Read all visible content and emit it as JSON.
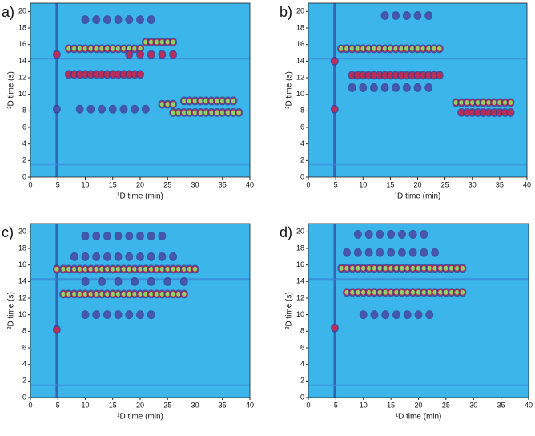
{
  "chart_data": [
    {
      "type": "contour",
      "panel_label": "a)",
      "xlabel": "¹D time (min)",
      "ylabel": "²D time (s)",
      "xlim": [
        0,
        40
      ],
      "ylim": [
        0,
        21
      ],
      "xticks": [
        0,
        5,
        10,
        15,
        20,
        25,
        30,
        35,
        40
      ],
      "yticks": [
        0,
        2,
        4,
        6,
        8,
        10,
        12,
        14,
        16,
        18,
        20
      ],
      "spot_rows": [
        {
          "y": 19,
          "color": "#4a55b0",
          "x": [
            10,
            12,
            14,
            16,
            18,
            20,
            22
          ]
        },
        {
          "y": 16.3,
          "color": "#8fd36a",
          "x": [
            21,
            22,
            23,
            24,
            25,
            26
          ]
        },
        {
          "y": 15.5,
          "color": "#8fd36a",
          "x": [
            7,
            8,
            9,
            10,
            11,
            12,
            13,
            14,
            15,
            16,
            17,
            18,
            19,
            20
          ]
        },
        {
          "y": 14.8,
          "color": "#b8305a",
          "x": [
            4.8,
            18,
            20,
            22,
            24,
            26
          ]
        },
        {
          "y": 12.4,
          "color": "#b8305a",
          "x": [
            7,
            8,
            9,
            10,
            11,
            12,
            13,
            14,
            15,
            16,
            17,
            18,
            19,
            20
          ]
        },
        {
          "y": 9.2,
          "color": "#8fd36a",
          "x": [
            28,
            29,
            30,
            31,
            32,
            33,
            34,
            35,
            36,
            37
          ]
        },
        {
          "y": 8.8,
          "color": "#8fd36a",
          "x": [
            24,
            25,
            26
          ]
        },
        {
          "y": 8.2,
          "color": "#4a55b0",
          "x": [
            4.8,
            9,
            11,
            13,
            15,
            17,
            19,
            21
          ]
        },
        {
          "y": 7.8,
          "color": "#8fd36a",
          "x": [
            26,
            27,
            28,
            29,
            30,
            31,
            32,
            33,
            34,
            35,
            36,
            37,
            38
          ]
        }
      ]
    },
    {
      "type": "contour",
      "panel_label": "b)",
      "xlabel": "¹D time (min)",
      "ylabel": "²D time (s)",
      "xlim": [
        0,
        40
      ],
      "ylim": [
        0,
        21
      ],
      "xticks": [
        0,
        5,
        10,
        15,
        20,
        25,
        30,
        35,
        40
      ],
      "yticks": [
        0,
        2,
        4,
        6,
        8,
        10,
        12,
        14,
        16,
        18,
        20
      ],
      "spot_rows": [
        {
          "y": 19.5,
          "color": "#4a55b0",
          "x": [
            14,
            16,
            18,
            20,
            22
          ]
        },
        {
          "y": 15.5,
          "color": "#8fd36a",
          "x": [
            6,
            7,
            8,
            9,
            10,
            11,
            12,
            13,
            14,
            15,
            16,
            17,
            18,
            19,
            20,
            21,
            22,
            23,
            24
          ]
        },
        {
          "y": 14,
          "color": "#b8305a",
          "x": [
            4.8
          ]
        },
        {
          "y": 12.3,
          "color": "#b8305a",
          "x": [
            8,
            9,
            10,
            11,
            12,
            13,
            14,
            15,
            16,
            17,
            18,
            19,
            20,
            21,
            22,
            23,
            24
          ]
        },
        {
          "y": 10.8,
          "color": "#4a55b0",
          "x": [
            8,
            10,
            12,
            14,
            16,
            18,
            20,
            22
          ]
        },
        {
          "y": 9,
          "color": "#8fd36a",
          "x": [
            27,
            28,
            29,
            30,
            31,
            32,
            33,
            34,
            35,
            36,
            37
          ]
        },
        {
          "y": 8.2,
          "color": "#b8305a",
          "x": [
            4.8
          ]
        },
        {
          "y": 7.8,
          "color": "#b8305a",
          "x": [
            28,
            29,
            30,
            31,
            32,
            33,
            34,
            35,
            36,
            37
          ]
        }
      ]
    },
    {
      "type": "contour",
      "panel_label": "c)",
      "xlabel": "¹D time (min)",
      "ylabel": "²D time (s)",
      "xlim": [
        0,
        40
      ],
      "ylim": [
        0,
        21
      ],
      "xticks": [
        0,
        5,
        10,
        15,
        20,
        25,
        30,
        35,
        40
      ],
      "yticks": [
        0,
        2,
        4,
        6,
        8,
        10,
        12,
        14,
        16,
        18,
        20
      ],
      "spot_rows": [
        {
          "y": 19.5,
          "color": "#4a55b0",
          "x": [
            10,
            12,
            14,
            16,
            18,
            20,
            22,
            24
          ]
        },
        {
          "y": 17,
          "color": "#4a55b0",
          "x": [
            8,
            10,
            12,
            14,
            16,
            18,
            20,
            22,
            24,
            26
          ]
        },
        {
          "y": 15.5,
          "color": "#8fd36a",
          "x": [
            4.8,
            6,
            7,
            8,
            9,
            10,
            11,
            12,
            13,
            14,
            15,
            16,
            17,
            18,
            19,
            20,
            21,
            22,
            23,
            24,
            25,
            26,
            27,
            28,
            29,
            30
          ]
        },
        {
          "y": 14,
          "color": "#4a55b0",
          "x": [
            10,
            13,
            16,
            19,
            22,
            25,
            28
          ]
        },
        {
          "y": 12.5,
          "color": "#8fd36a",
          "x": [
            6,
            7,
            8,
            9,
            10,
            11,
            12,
            13,
            14,
            15,
            16,
            17,
            18,
            19,
            20,
            21,
            22,
            23,
            24,
            25,
            26,
            27,
            28
          ]
        },
        {
          "y": 10,
          "color": "#4a55b0",
          "x": [
            10,
            12,
            14,
            16,
            18,
            20,
            22
          ]
        },
        {
          "y": 8.2,
          "color": "#b8305a",
          "x": [
            4.8
          ]
        }
      ]
    },
    {
      "type": "contour",
      "panel_label": "d)",
      "xlabel": "¹D time (min)",
      "ylabel": "²D time (s)",
      "xlim": [
        0,
        40
      ],
      "ylim": [
        0,
        21
      ],
      "xticks": [
        0,
        5,
        10,
        15,
        20,
        25,
        30,
        35,
        40
      ],
      "yticks": [
        0,
        2,
        4,
        6,
        8,
        10,
        12,
        14,
        16,
        18,
        20
      ],
      "spot_rows": [
        {
          "y": 19.7,
          "color": "#4a55b0",
          "x": [
            9,
            11,
            13,
            15,
            17,
            19,
            21
          ]
        },
        {
          "y": 17.5,
          "color": "#4a55b0",
          "x": [
            7,
            9,
            11,
            13,
            15,
            17,
            19,
            21,
            23
          ]
        },
        {
          "y": 15.6,
          "color": "#8fd36a",
          "x": [
            6,
            7,
            8,
            9,
            10,
            11,
            12,
            13,
            14,
            15,
            16,
            17,
            18,
            19,
            20,
            21,
            22,
            23,
            24,
            25,
            26,
            27,
            28
          ]
        },
        {
          "y": 12.7,
          "color": "#8fd36a",
          "x": [
            7,
            8,
            9,
            10,
            11,
            12,
            13,
            14,
            15,
            16,
            17,
            18,
            19,
            20,
            21,
            22,
            23,
            24,
            25,
            26,
            27,
            28
          ]
        },
        {
          "y": 10,
          "color": "#4a55b0",
          "x": [
            10,
            12,
            14,
            16,
            18,
            20,
            22
          ]
        },
        {
          "y": 8.4,
          "color": "#b8305a",
          "x": [
            4.8
          ]
        }
      ]
    }
  ]
}
